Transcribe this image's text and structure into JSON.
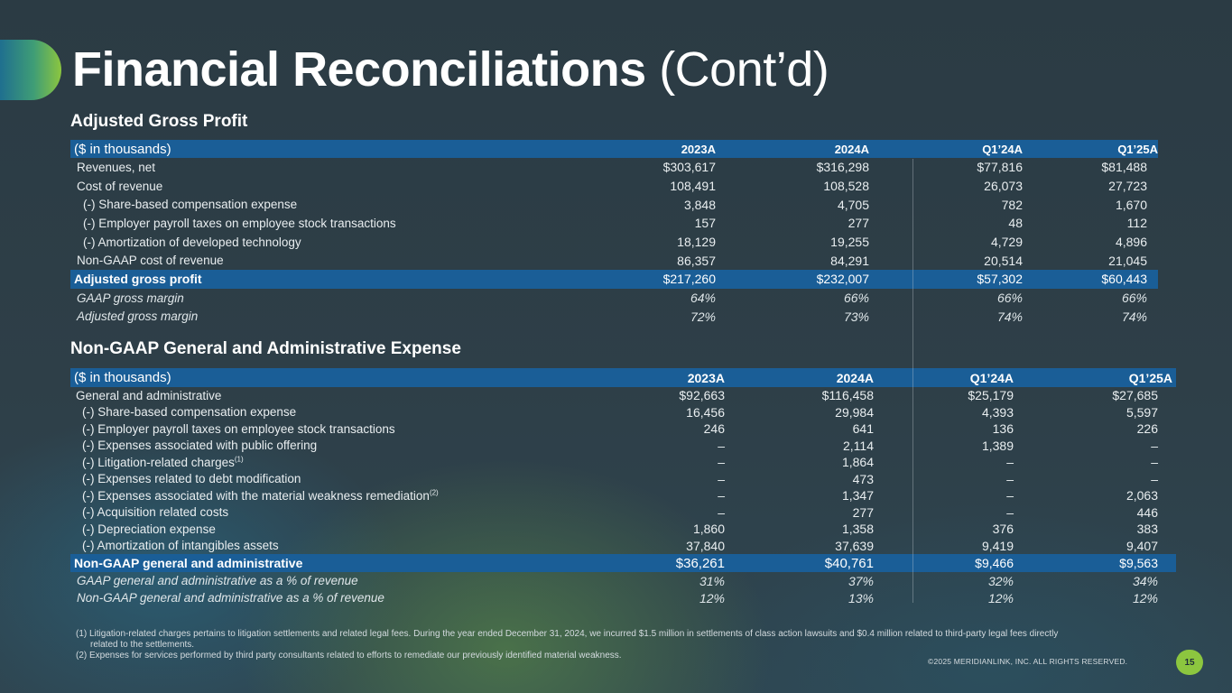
{
  "title": {
    "bold": "Financial Reconciliations",
    "light": "(Cont’d)"
  },
  "gross_profit": {
    "heading": "Adjusted Gross Profit",
    "unit_label": "($ in thousands)",
    "columns": [
      "2023A",
      "2024A",
      "Q1’24A",
      "Q1’25A"
    ],
    "rows": [
      {
        "label": "Revenues, net",
        "values": [
          "$303,617",
          "$316,298",
          "$77,816",
          "$81,488"
        ]
      },
      {
        "label": "Cost of revenue",
        "values": [
          "108,491",
          "108,528",
          "26,073",
          "27,723"
        ]
      },
      {
        "label": "(-) Share-based compensation expense",
        "values": [
          "3,848",
          "4,705",
          "782",
          "1,670"
        ]
      },
      {
        "label": "(-) Employer payroll taxes on employee stock transactions",
        "values": [
          "157",
          "277",
          "48",
          "112"
        ]
      },
      {
        "label": "(-) Amortization of developed technology",
        "values": [
          "18,129",
          "19,255",
          "4,729",
          "4,896"
        ]
      },
      {
        "label": "Non-GAAP cost of revenue",
        "values": [
          "86,357",
          "84,291",
          "20,514",
          "21,045"
        ]
      }
    ],
    "total": {
      "label": "Adjusted gross profit",
      "values": [
        "$217,260",
        "$232,007",
        "$57,302",
        "$60,443"
      ]
    },
    "margins": [
      {
        "label": "GAAP gross margin",
        "values": [
          "64%",
          "66%",
          "66%",
          "66%"
        ]
      },
      {
        "label": "Adjusted gross margin",
        "values": [
          "72%",
          "73%",
          "74%",
          "74%"
        ]
      }
    ]
  },
  "ga_expense": {
    "heading": "Non-GAAP General and Administrative Expense",
    "unit_label": "($ in thousands)",
    "columns": [
      "2023A",
      "2024A",
      "Q1’24A",
      "Q1’25A"
    ],
    "rows": [
      {
        "label": "General and administrative",
        "values": [
          "$92,663",
          "$116,458",
          "$25,179",
          "$27,685"
        ]
      },
      {
        "label": "(-) Share-based compensation expense",
        "values": [
          "16,456",
          "29,984",
          "4,393",
          "5,597"
        ]
      },
      {
        "label": "(-) Employer payroll taxes on employee stock transactions",
        "values": [
          "246",
          "641",
          "136",
          "226"
        ]
      },
      {
        "label": "(-) Expenses associated with public offering",
        "values": [
          "–",
          "2,114",
          "1,389",
          "–"
        ]
      },
      {
        "label": "(-) Litigation-related charges",
        "sup": "(1)",
        "values": [
          "–",
          "1,864",
          "–",
          "–"
        ]
      },
      {
        "label": "(-) Expenses related to debt modification",
        "values": [
          "–",
          "473",
          "–",
          "–"
        ]
      },
      {
        "label": "(-) Expenses associated with the material weakness remediation",
        "sup": "(2)",
        "values": [
          "–",
          "1,347",
          "–",
          "2,063"
        ]
      },
      {
        "label": "(-) Acquisition related costs",
        "values": [
          "–",
          "277",
          "–",
          "446"
        ]
      },
      {
        "label": "(-) Depreciation expense",
        "values": [
          "1,860",
          "1,358",
          "376",
          "383"
        ]
      },
      {
        "label": "(-) Amortization of intangibles assets",
        "values": [
          "37,840",
          "37,639",
          "9,419",
          "9,407"
        ]
      }
    ],
    "total": {
      "label": "Non-GAAP general and administrative",
      "values": [
        "$36,261",
        "$40,761",
        "$9,466",
        "$9,563"
      ]
    },
    "ratios": [
      {
        "label": "GAAP general and administrative as a % of revenue",
        "values": [
          "31%",
          "37%",
          "32%",
          "34%"
        ]
      },
      {
        "label": "Non-GAAP general and administrative as a % of revenue",
        "values": [
          "12%",
          "13%",
          "12%",
          "12%"
        ]
      }
    ]
  },
  "footnotes": {
    "note1_line1": "(1) Litigation-related charges pertains to litigation settlements and related legal fees. During the year ended December 31, 2024, we incurred $1.5 million in settlements of class action lawsuits and $0.4 million related to third-party legal fees directly",
    "note1_line2": "related to the settlements.",
    "note2": "(2) Expenses for services performed by third party consultants related to efforts to remediate our previously identified material weakness."
  },
  "copyright": "©2025 MERIDIANLINK, INC. ALL RIGHTS RESERVED.",
  "page_number": "15",
  "colors": {
    "header_band": "#1a5e97",
    "accent_green": "#8cc63f",
    "background": "#2e3f48"
  }
}
